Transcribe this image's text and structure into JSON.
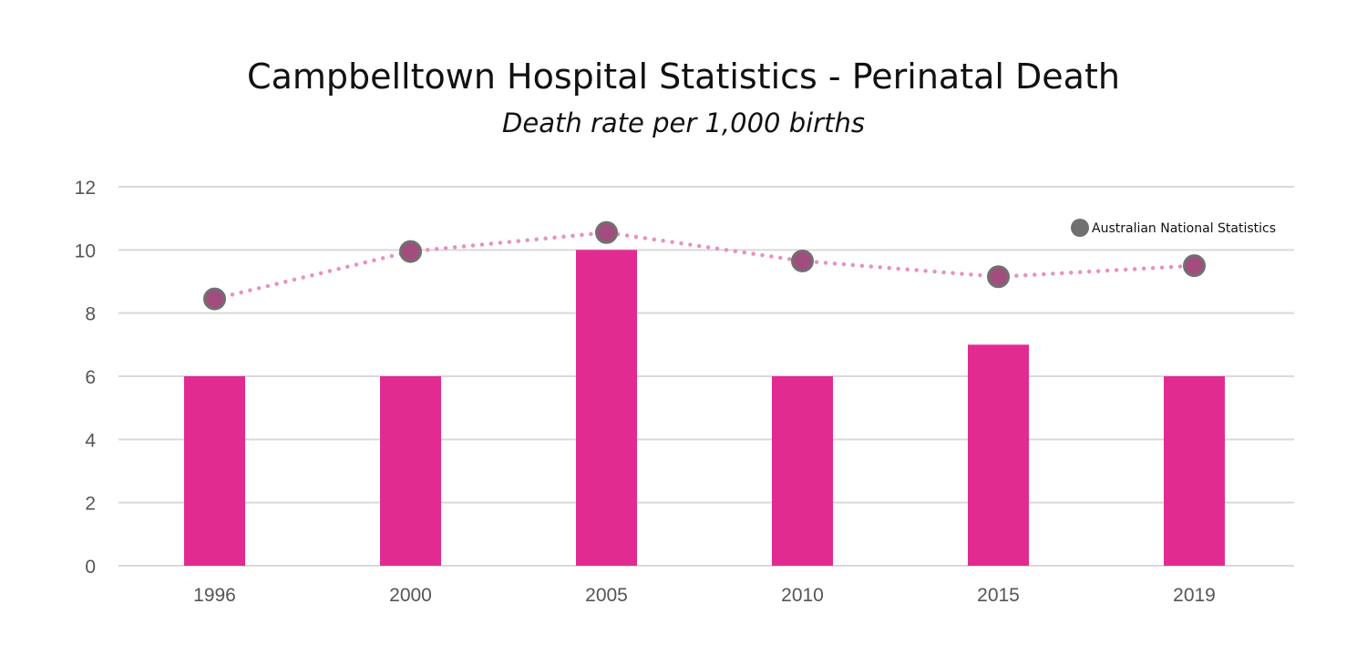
{
  "chart_data": {
    "type": "bar",
    "title": "Campbelltown Hospital Statistics - Perinatal Death",
    "subtitle": "Death rate per 1,000 births",
    "xlabel": "",
    "ylabel": "",
    "categories": [
      "1996",
      "2000",
      "2005",
      "2010",
      "2015",
      "2019"
    ],
    "ylim": [
      0,
      12
    ],
    "yticks": [
      0,
      2,
      4,
      6,
      8,
      10,
      12
    ],
    "grid": true,
    "legend_position": "top-right",
    "series": [
      {
        "type": "bar",
        "values": [
          6,
          6,
          10,
          6,
          7,
          6
        ],
        "color": "#e22b91"
      },
      {
        "type": "line",
        "name": "Australian National Statistics",
        "values": [
          8.45,
          9.95,
          10.55,
          9.65,
          9.15,
          9.5
        ],
        "color": "#e891c2",
        "marker_fill": "#a34d7e",
        "marker_edge": "#707070",
        "line_style": "dotted"
      }
    ]
  }
}
